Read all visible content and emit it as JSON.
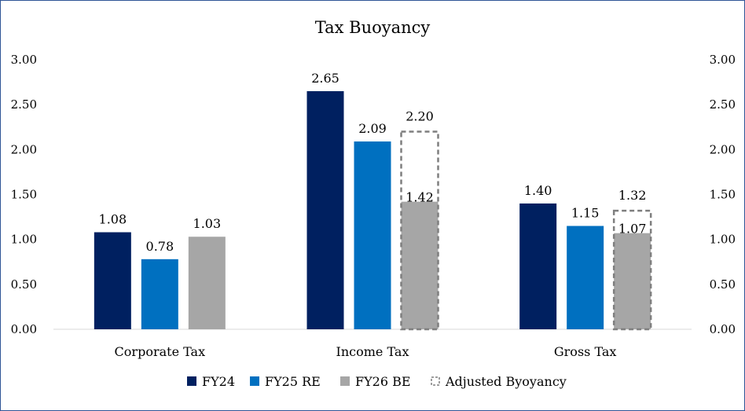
{
  "chart_data": {
    "type": "bar",
    "title": "Tax Buoyancy",
    "categories": [
      "Corporate Tax",
      "Income Tax",
      "Gross Tax"
    ],
    "series": [
      {
        "name": "FY24",
        "values": [
          1.08,
          2.65,
          1.4
        ],
        "labels": [
          "1.08",
          "2.65",
          "1.40"
        ],
        "color": "#002060"
      },
      {
        "name": "FY25 RE",
        "values": [
          0.78,
          2.09,
          1.15
        ],
        "labels": [
          "0.78",
          "2.09",
          "1.15"
        ],
        "color": "#0070c0"
      },
      {
        "name": "FY26 BE",
        "values": [
          1.03,
          1.42,
          1.07
        ],
        "labels": [
          "1.03",
          "1.42",
          "1.07"
        ],
        "color": "#a6a6a6"
      },
      {
        "name": "Adjusted Byoyancy",
        "values": [
          null,
          2.2,
          1.32
        ],
        "labels": [
          "",
          "2.20",
          "1.32"
        ],
        "color": "#7f7f7f",
        "style": "dashed-outline",
        "label_color": "#ff0000"
      }
    ],
    "ylim": [
      0,
      3
    ],
    "yticks": [
      "0.00",
      "0.50",
      "1.00",
      "1.50",
      "2.00",
      "2.50",
      "3.00"
    ],
    "secondary_yticks": [
      "0.00",
      "0.50",
      "1.00",
      "1.50",
      "2.00",
      "2.50",
      "3.00"
    ],
    "grid": false,
    "legend_position": "bottom"
  }
}
